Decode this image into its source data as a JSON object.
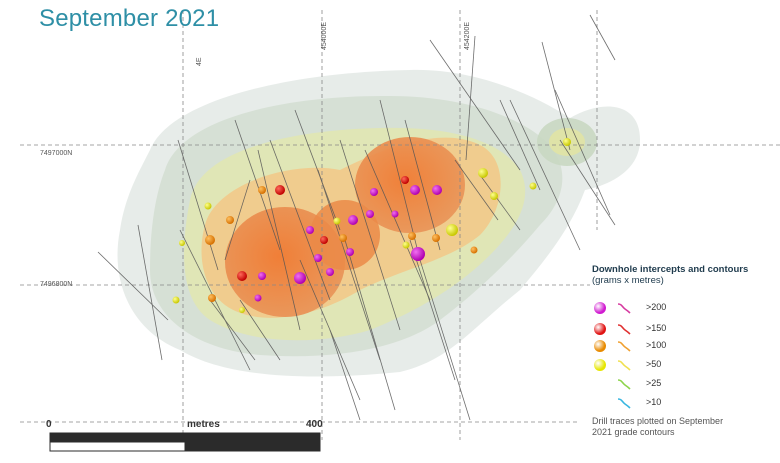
{
  "title": "September 2021",
  "grid": {
    "easting_labels": [
      "454000E",
      "454200E"
    ],
    "northing_labels": [
      "7497000N",
      "7496800N"
    ],
    "partial_label": "4E"
  },
  "legend": {
    "title_bold": "Downhole intercepts and contours",
    "title_unit": "(grams x metres)",
    "items": [
      {
        "label": ">200",
        "dot_color": "#d01ad0",
        "trace_color": "#d63aa0"
      },
      {
        "label": ">150",
        "dot_color": "#e01414",
        "trace_color": "#e03030"
      },
      {
        "label": ">100",
        "dot_color": "#e88a00",
        "trace_color": "#f0a030"
      },
      {
        "label": ">50",
        "dot_color": "#e6e600",
        "trace_color": "#f0e050"
      },
      {
        "label": ">25",
        "dot_color": null,
        "trace_color": "#8cd44a"
      },
      {
        "label": ">10",
        "dot_color": null,
        "trace_color": "#38b6e0"
      }
    ],
    "note": "Drill traces plotted on September 2021 grade contours"
  },
  "scale_bar": {
    "label_start": "0",
    "label_mid": "metres",
    "label_end": "400"
  }
}
